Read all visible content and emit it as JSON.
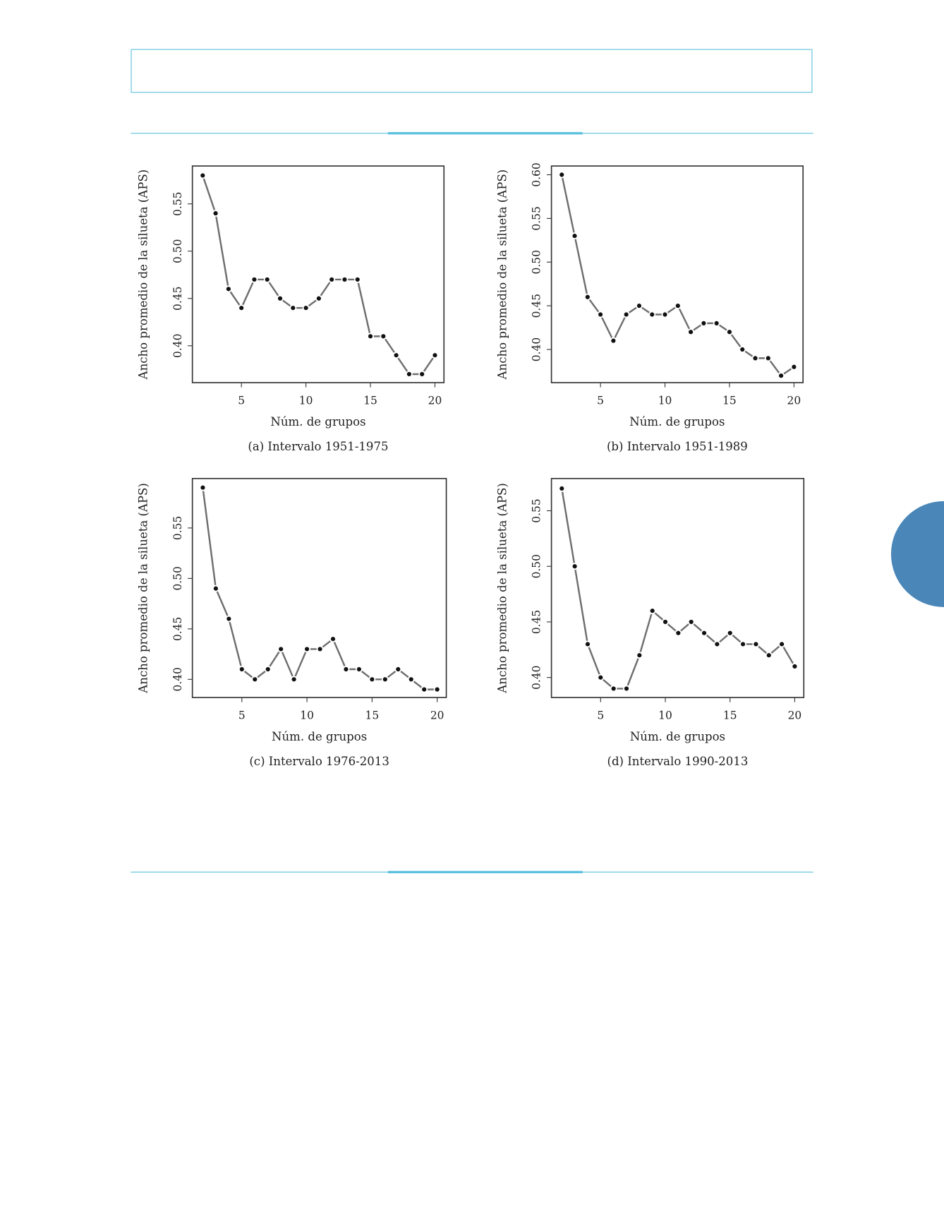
{
  "chart_data": [
    {
      "type": "line",
      "caption": "(a) Intervalo 1951-1975",
      "xlabel": "Núm. de grupos",
      "ylabel": "Ancho promedio de la silueta (APS)",
      "x": [
        2,
        3,
        4,
        5,
        6,
        7,
        8,
        9,
        10,
        11,
        12,
        13,
        14,
        15,
        16,
        17,
        18,
        19,
        20
      ],
      "values": [
        0.58,
        0.54,
        0.46,
        0.44,
        0.47,
        0.47,
        0.45,
        0.44,
        0.44,
        0.45,
        0.47,
        0.47,
        0.47,
        0.41,
        0.41,
        0.39,
        0.37,
        0.37,
        0.39
      ],
      "color": "#6e6e6e",
      "xlim": [
        1.2,
        20.7
      ],
      "ylim": [
        0.361,
        0.59
      ],
      "xticks": [
        5,
        10,
        15,
        20
      ],
      "yticks": [
        {
          "value": 0.4,
          "label": "0.40"
        },
        {
          "value": 0.45,
          "label": "0.45"
        },
        {
          "value": 0.5,
          "label": "0.50"
        },
        {
          "value": 0.55,
          "label": "0.55"
        }
      ]
    },
    {
      "type": "line",
      "caption": "(b) Intervalo 1951-1989",
      "xlabel": "Núm. de grupos",
      "ylabel": "Ancho promedio de la silueta (APS)",
      "x": [
        2,
        3,
        4,
        5,
        6,
        7,
        8,
        9,
        10,
        11,
        12,
        13,
        14,
        15,
        16,
        17,
        18,
        19,
        20
      ],
      "values": [
        0.6,
        0.53,
        0.46,
        0.44,
        0.41,
        0.44,
        0.45,
        0.44,
        0.44,
        0.45,
        0.42,
        0.43,
        0.43,
        0.42,
        0.4,
        0.39,
        0.39,
        0.37,
        0.38
      ],
      "color": "#6e6e6e",
      "xlim": [
        1.2,
        20.7
      ],
      "ylim": [
        0.362,
        0.61
      ],
      "xticks": [
        5,
        10,
        15,
        20
      ],
      "yticks": [
        {
          "value": 0.4,
          "label": "0.40"
        },
        {
          "value": 0.45,
          "label": "0.45"
        },
        {
          "value": 0.5,
          "label": "0.50"
        },
        {
          "value": 0.55,
          "label": "0.55"
        },
        {
          "value": 0.6,
          "label": "0.60"
        }
      ]
    },
    {
      "type": "line",
      "caption": "(c) Intervalo 1976-2013",
      "xlabel": "Núm. de grupos",
      "ylabel": "Ancho promedio de la silueta (APS)",
      "x": [
        2,
        3,
        4,
        5,
        6,
        7,
        8,
        9,
        10,
        11,
        12,
        13,
        14,
        15,
        16,
        17,
        18,
        19,
        20
      ],
      "values": [
        0.59,
        0.49,
        0.46,
        0.41,
        0.4,
        0.41,
        0.43,
        0.4,
        0.43,
        0.43,
        0.44,
        0.41,
        0.41,
        0.4,
        0.4,
        0.41,
        0.4,
        0.39,
        0.39
      ],
      "color": "#6e6e6e",
      "xlim": [
        1.2,
        20.7
      ],
      "ylim": [
        0.382,
        0.599
      ],
      "xticks": [
        5,
        10,
        15,
        20
      ],
      "yticks": [
        {
          "value": 0.4,
          "label": "0.40"
        },
        {
          "value": 0.45,
          "label": "0.45"
        },
        {
          "value": 0.5,
          "label": "0.50"
        },
        {
          "value": 0.55,
          "label": "0.55"
        }
      ]
    },
    {
      "type": "line",
      "caption": "(d) Intervalo 1990-2013",
      "xlabel": "Núm. de grupos",
      "ylabel": "Ancho promedio de la silueta (APS)",
      "x": [
        2,
        3,
        4,
        5,
        6,
        7,
        8,
        9,
        10,
        11,
        12,
        13,
        14,
        15,
        16,
        17,
        18,
        19,
        20
      ],
      "values": [
        0.57,
        0.5,
        0.43,
        0.4,
        0.39,
        0.39,
        0.42,
        0.46,
        0.45,
        0.44,
        0.45,
        0.44,
        0.43,
        0.44,
        0.43,
        0.43,
        0.42,
        0.43,
        0.41
      ],
      "color": "#6e6e6e",
      "xlim": [
        1.2,
        20.7
      ],
      "ylim": [
        0.382,
        0.579
      ],
      "xticks": [
        5,
        10,
        15,
        20
      ],
      "yticks": [
        {
          "value": 0.4,
          "label": "0.40"
        },
        {
          "value": 0.45,
          "label": "0.45"
        },
        {
          "value": 0.5,
          "label": "0.50"
        },
        {
          "value": 0.55,
          "label": "0.55"
        }
      ]
    }
  ]
}
